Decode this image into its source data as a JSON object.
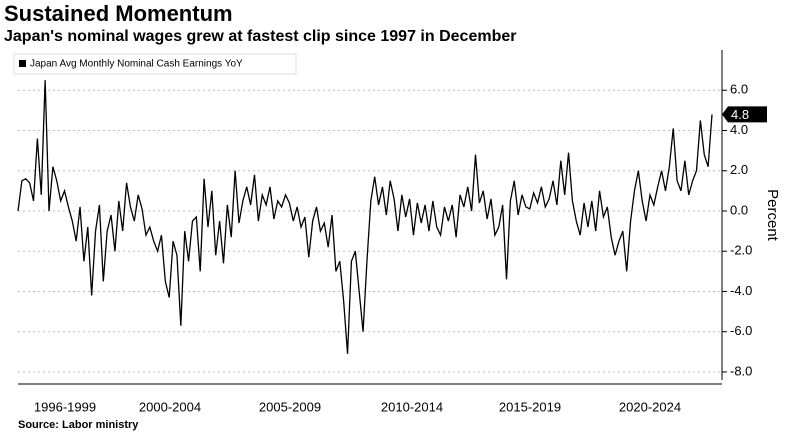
{
  "chart_data": {
    "type": "line",
    "title": "Sustained Momentum",
    "subtitle": "Japan's nominal wages grew at fastest clip since 1997 in December",
    "source": "Source: Labor ministry",
    "y_axis_label": "Percent",
    "x_tick_labels": [
      "1996-1999",
      "2000-2004",
      "2005-2009",
      "2010-2014",
      "2015-2019",
      "2020-2024"
    ],
    "series": [
      {
        "name": "Japan Avg Monthly Nominal Cash Earnings YoY",
        "color": "#000000",
        "values": [
          0,
          1.5,
          1.6,
          1.4,
          0.5,
          3.6,
          0.8,
          6.5,
          0.0,
          2.2,
          1.5,
          0.5,
          1.0,
          0.2,
          -0.5,
          -1.5,
          0.2,
          -2.5,
          -0.8,
          -4.2,
          -1.0,
          0.3,
          -3.5,
          -1.0,
          -0.2,
          -2.0,
          0.5,
          -1.0,
          1.4,
          0.2,
          -0.5,
          0.8,
          0.1,
          -1.2,
          -0.8,
          -1.5,
          -2.0,
          -1.2,
          -3.5,
          -4.3,
          -1.5,
          -2.2,
          -5.7,
          -1.0,
          -2.5,
          -0.5,
          -0.3,
          -3.0,
          1.6,
          -0.8,
          1.0,
          -2.2,
          -0.5,
          -2.6,
          0.3,
          -1.3,
          2.0,
          -0.6,
          0.5,
          1.2,
          0.3,
          1.8,
          -0.5,
          0.8,
          0.3,
          1.2,
          -0.4,
          0.5,
          0.2,
          0.8,
          0.4,
          -0.5,
          0.2,
          -0.8,
          -0.3,
          -2.3,
          -0.5,
          0.2,
          -1.0,
          -0.6,
          -1.8,
          -0.2,
          -3.0,
          -2.5,
          -4.5,
          -7.1,
          -2.5,
          -2.0,
          -4.0,
          -6.0,
          -2.5,
          0.5,
          1.7,
          0.3,
          1.2,
          -0.2,
          1.5,
          0.6,
          -1.0,
          0.8,
          -0.3,
          0.6,
          -1.2,
          0.4,
          -0.6,
          0.3,
          -1.0,
          0.5,
          -0.8,
          -1.2,
          0.2,
          -0.5,
          0.3,
          -1.3,
          0.8,
          0.2,
          1.2,
          0.0,
          2.8,
          0.4,
          1.0,
          -0.4,
          0.6,
          -1.2,
          -0.8,
          0.3,
          -3.4,
          0.5,
          1.5,
          -0.2,
          0.8,
          0.2,
          0.1,
          0.9,
          0.4,
          1.2,
          0.2,
          0.6,
          1.5,
          0.3,
          2.5,
          0.8,
          2.9,
          0.5,
          -0.5,
          -1.2,
          0.4,
          -0.8,
          0.5,
          -1.0,
          1.0,
          -0.3,
          0.2,
          -1.3,
          -2.2,
          -1.5,
          -1.0,
          -3.0,
          -0.5,
          1.0,
          2.0,
          0.5,
          -0.5,
          0.8,
          0.3,
          1.2,
          2.0,
          1.0,
          2.2,
          4.1,
          1.5,
          1.0,
          2.5,
          0.8,
          1.5,
          2.0,
          4.5,
          2.8,
          2.2,
          4.8
        ]
      }
    ],
    "ylim": [
      -8.4,
      8
    ],
    "yticks": [
      {
        "value": -8,
        "label": "-8.0"
      },
      {
        "value": -6,
        "label": "-6.0"
      },
      {
        "value": -4,
        "label": "-4.0"
      },
      {
        "value": -2,
        "label": "-2.0"
      },
      {
        "value": 0,
        "label": "0.0"
      },
      {
        "value": 2,
        "label": "2.0"
      },
      {
        "value": 4,
        "label": "4.0"
      },
      {
        "value": 6,
        "label": "6.0"
      }
    ],
    "grid": true,
    "legend": "top-left"
  }
}
